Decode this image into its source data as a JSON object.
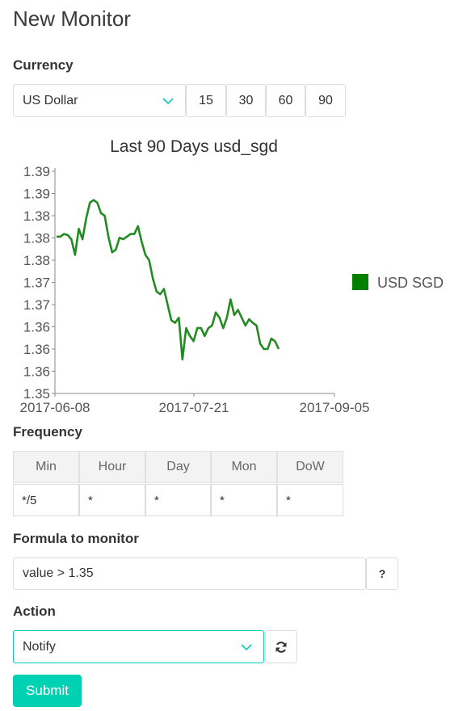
{
  "page": {
    "title": "New Monitor"
  },
  "currency": {
    "label": "Currency",
    "selected": "US Dollar",
    "day_options": [
      "15",
      "30",
      "60",
      "90"
    ]
  },
  "chart_data": {
    "type": "line",
    "title": "Last 90 Days usd_sgd",
    "x_ticks": [
      "2017-06-08",
      "2017-07-21",
      "2017-09-05"
    ],
    "y_ticks": [
      "1.35",
      "1.36",
      "1.36",
      "1.36",
      "1.37",
      "1.37",
      "1.38",
      "1.38",
      "1.38",
      "1.39",
      "1.39"
    ],
    "ylim": [
      1.35,
      1.3925
    ],
    "legend_position": "right",
    "grid": false,
    "series": [
      {
        "name": "USD SGD",
        "color": "#228B22",
        "values": [
          1.38,
          1.38,
          1.3805,
          1.3803,
          1.3795,
          1.3765,
          1.3815,
          1.3795,
          1.3835,
          1.3865,
          1.387,
          1.3865,
          1.3845,
          1.384,
          1.38,
          1.377,
          1.3775,
          1.3798,
          1.3795,
          1.38,
          1.3805,
          1.3805,
          1.382,
          1.379,
          1.3765,
          1.3755,
          1.372,
          1.3695,
          1.369,
          1.37,
          1.367,
          1.364,
          1.3635,
          1.3645,
          1.3565,
          1.3625,
          1.361,
          1.36,
          1.3625,
          1.3625,
          1.361,
          1.3625,
          1.363,
          1.3655,
          1.3645,
          1.3625,
          1.3645,
          1.368,
          1.365,
          1.366,
          1.3645,
          1.363,
          1.3642,
          1.3635,
          1.363,
          1.3595,
          1.3585,
          1.3585,
          1.3605,
          1.36,
          1.3585
        ]
      }
    ]
  },
  "frequency": {
    "label": "Frequency",
    "headers": [
      "Min",
      "Hour",
      "Day",
      "Mon",
      "DoW"
    ],
    "values": [
      "*/5",
      "*",
      "*",
      "*",
      "*"
    ]
  },
  "formula": {
    "label": "Formula to monitor",
    "value": "value > 1.35",
    "help_label": "?"
  },
  "action": {
    "label": "Action",
    "selected": "Notify"
  },
  "submit": {
    "label": "Submit"
  },
  "colors": {
    "accent": "#00d1b2",
    "series": "#228B22"
  },
  "icons": {
    "select_arrow": "chevron-down-icon",
    "refresh": "refresh-icon"
  }
}
